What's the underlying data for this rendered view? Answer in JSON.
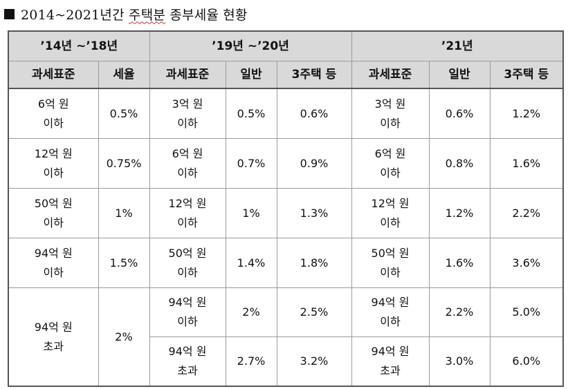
{
  "title": {
    "prefix": "2014~2021년간",
    "emph": "주택분",
    "suffix": "종부세율 현황"
  },
  "periods": [
    "’14년 ~’18년",
    "’19년 ~’20년",
    "’21년"
  ],
  "headers": {
    "p1": [
      "과세표준",
      "세율"
    ],
    "p2": [
      "과세표준",
      "일반",
      "3주택 등"
    ],
    "p3": [
      "과세표준",
      "일반",
      "3주택 등"
    ]
  },
  "rows": [
    {
      "p1_base": [
        "6억 원",
        "이하"
      ],
      "p1_rate": "0.5%",
      "p2_base": [
        "3억 원",
        "이하"
      ],
      "p2_gen": "0.5%",
      "p2_multi": "0.6%",
      "p3_base": [
        "3억 원",
        "이하"
      ],
      "p3_gen": "0.6%",
      "p3_multi": "1.2%"
    },
    {
      "p1_base": [
        "12억 원",
        "이하"
      ],
      "p1_rate": "0.75%",
      "p2_base": [
        "6억 원",
        "이하"
      ],
      "p2_gen": "0.7%",
      "p2_multi": "0.9%",
      "p3_base": [
        "6억 원",
        "이하"
      ],
      "p3_gen": "0.8%",
      "p3_multi": "1.6%"
    },
    {
      "p1_base": [
        "50억 원",
        "이하"
      ],
      "p1_rate": "1%",
      "p2_base": [
        "12억 원",
        "이하"
      ],
      "p2_gen": "1%",
      "p2_multi": "1.3%",
      "p3_base": [
        "12억 원",
        "이하"
      ],
      "p3_gen": "1.2%",
      "p3_multi": "2.2%"
    },
    {
      "p1_base": [
        "94억 원",
        "이하"
      ],
      "p1_rate": "1.5%",
      "p2_base": [
        "50억 원",
        "이하"
      ],
      "p2_gen": "1.4%",
      "p2_multi": "1.8%",
      "p3_base": [
        "50억 원",
        "이하"
      ],
      "p3_gen": "1.6%",
      "p3_multi": "3.6%"
    }
  ],
  "last": {
    "p1_base": [
      "94억 원",
      "초과"
    ],
    "p1_rate": "2%",
    "sub": [
      {
        "p2_base": [
          "94억 원",
          "이하"
        ],
        "p2_gen": "2%",
        "p2_multi": "2.5%",
        "p3_base": [
          "94억 원",
          "이하"
        ],
        "p3_gen": "2.2%",
        "p3_multi": "5.0%"
      },
      {
        "p2_base": [
          "94억 원",
          "초과"
        ],
        "p2_gen": "2.7%",
        "p2_multi": "3.2%",
        "p3_base": [
          "94억 원",
          "초과"
        ],
        "p3_gen": "3.0%",
        "p3_multi": "6.0%"
      }
    ]
  }
}
